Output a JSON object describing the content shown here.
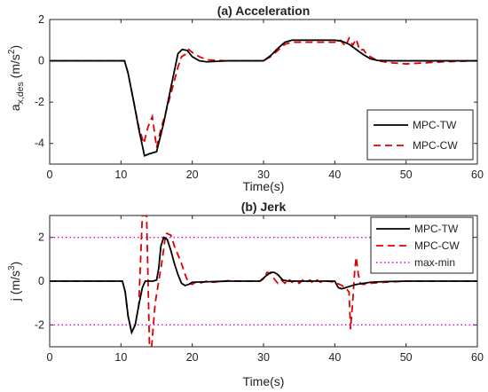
{
  "colors": {
    "tw": "#000000",
    "cw": "#e00000",
    "maxmin": "#e000e0"
  },
  "chart_data": [
    {
      "type": "line",
      "title": "(a) Acceleration",
      "xlabel": "Time(s)",
      "ylabel": "a",
      "ylabel_sub": "x,des",
      "ylabel_unit_open": "(m/s",
      "ylabel_unit_sup": "2",
      "ylabel_unit_close": ")",
      "xlim": [
        0,
        60
      ],
      "ylim": [
        -5,
        2
      ],
      "xticks": [
        0,
        10,
        20,
        30,
        40,
        50,
        60
      ],
      "xtick_labels": [
        "0",
        "10",
        "20",
        "30",
        "40",
        "50",
        "60"
      ],
      "yticks": [
        -4,
        -2,
        0,
        2
      ],
      "ytick_labels": [
        "-4",
        "-2",
        "0",
        "2"
      ],
      "legend_position": "bottom-right",
      "series": [
        {
          "name": "MPC-TW",
          "style": "solid",
          "color": "#000000",
          "x": [
            0,
            10.5,
            11,
            11.8,
            12.5,
            13.3,
            14,
            15,
            16,
            17,
            18,
            18.6,
            19.3,
            20,
            21,
            22,
            25,
            30,
            31,
            32,
            33,
            34,
            36,
            38,
            40,
            41,
            42,
            43,
            44,
            45,
            46,
            48,
            50,
            60
          ],
          "y": [
            0,
            0,
            -0.6,
            -2.0,
            -3.3,
            -4.6,
            -4.5,
            -4.4,
            -3.0,
            -1.3,
            0.35,
            0.55,
            0.5,
            0.2,
            0,
            -0.05,
            0,
            0,
            0.25,
            0.6,
            0.9,
            1.0,
            1.0,
            1.0,
            1.0,
            0.95,
            0.8,
            0.55,
            0.3,
            0.1,
            0.02,
            0,
            0,
            0
          ]
        },
        {
          "name": "MPC-CW",
          "style": "dashed",
          "color": "#e00000",
          "x": [
            0,
            10.5,
            11,
            11.8,
            12.5,
            13.2,
            13.8,
            14.4,
            15.0,
            15.6,
            16.2,
            17,
            18,
            18.5,
            19,
            19.5,
            20.2,
            21,
            22,
            25,
            30,
            31,
            32,
            33,
            34,
            36,
            38,
            40,
            40.8,
            41.5,
            42,
            42.5,
            43,
            43.5,
            44,
            44.5,
            45,
            46,
            48,
            50,
            55,
            60
          ],
          "y": [
            0,
            0,
            -0.6,
            -2.0,
            -3.2,
            -4.0,
            -3.2,
            -2.7,
            -4.2,
            -3.3,
            -2.6,
            -1.6,
            -0.3,
            0.2,
            0.3,
            0.55,
            0.35,
            0.2,
            0.05,
            0,
            0,
            0.2,
            0.5,
            0.8,
            0.9,
            0.9,
            0.9,
            0.9,
            1.0,
            0.7,
            1.1,
            0.75,
            1.05,
            0.5,
            0.55,
            0.3,
            0.2,
            0,
            -0.1,
            -0.15,
            -0.05,
            0
          ]
        }
      ]
    },
    {
      "type": "line",
      "title": "(b) Jerk",
      "xlabel": "Time(s)",
      "ylabel": "j (m/s",
      "ylabel_unit_sup": "3",
      "ylabel_unit_close": ")",
      "xlim": [
        0,
        60
      ],
      "ylim": [
        -3,
        3
      ],
      "xticks": [
        0,
        10,
        20,
        30,
        40,
        50,
        60
      ],
      "xtick_labels": [
        "0",
        "10",
        "20",
        "30",
        "40",
        "50",
        "60"
      ],
      "yticks": [
        -2,
        0,
        2
      ],
      "ytick_labels": [
        "-2",
        "0",
        "2"
      ],
      "legend_position": "top-right",
      "series": [
        {
          "name": "MPC-TW",
          "style": "solid",
          "color": "#000000",
          "x": [
            0,
            10.2,
            10.6,
            11,
            11.5,
            12,
            12.5,
            13,
            13.4,
            13.8,
            14.5,
            15,
            15.3,
            15.6,
            16,
            16.5,
            17,
            17.5,
            18,
            18.5,
            19,
            19.5,
            20,
            22,
            25,
            29.5,
            30.2,
            31,
            31.5,
            32,
            32.7,
            33.5,
            35,
            40,
            40.5,
            41,
            42,
            43,
            44,
            45,
            47,
            50,
            60
          ],
          "y": [
            0,
            0,
            -0.5,
            -1.6,
            -2.35,
            -2.0,
            -1.1,
            -0.3,
            0,
            0,
            0,
            0.05,
            0.6,
            1.6,
            2.0,
            1.9,
            1.4,
            0.8,
            0.3,
            -0.1,
            -0.2,
            -0.15,
            -0.05,
            -0.03,
            0,
            0,
            0.2,
            0.4,
            0.4,
            0.3,
            0.05,
            0,
            0,
            0,
            -0.3,
            -0.35,
            -0.25,
            -0.15,
            -0.1,
            -0.05,
            -0.02,
            0,
            0
          ]
        },
        {
          "name": "MPC-CW",
          "style": "dashed",
          "color": "#e00000",
          "x": [
            0,
            10.2,
            10.6,
            11,
            11.5,
            12,
            12.5,
            13,
            13.3,
            13.6,
            14.0,
            14.3,
            14.8,
            15.3,
            15.8,
            16.3,
            17,
            17.5,
            18,
            18.5,
            19,
            19.5,
            20,
            20.5,
            21,
            22,
            23,
            25,
            27,
            29.5,
            30,
            30.5,
            31,
            31.5,
            32,
            32.5,
            33,
            33.5,
            34,
            34.5,
            35,
            35.5,
            36,
            36.5,
            37,
            37.5,
            38,
            38.5,
            39,
            40,
            41,
            41.5,
            42,
            42.2,
            42.5,
            42.8,
            43,
            43.3,
            43.6,
            44,
            45,
            47,
            50,
            60
          ],
          "y": [
            0,
            0,
            -0.5,
            -1.6,
            -2.35,
            -2.0,
            -1.1,
            3.0,
            3.0,
            3.0,
            -3.0,
            -3.0,
            -1.0,
            0,
            1.0,
            2.2,
            2.1,
            1.6,
            1.2,
            0.8,
            0.3,
            -0.1,
            -0.15,
            -0.05,
            -0.1,
            0.0,
            -0.05,
            0.02,
            0,
            0,
            0.1,
            0.4,
            0.35,
            0.1,
            -0.1,
            0.05,
            -0.1,
            0.1,
            -0.05,
            0.05,
            -0.1,
            0.05,
            -0.05,
            0.05,
            -0.1,
            0.05,
            -0.05,
            0.02,
            0,
            -0.05,
            -0.2,
            -0.3,
            -0.5,
            -2.2,
            -1.0,
            0.5,
            1.1,
            0.3,
            -0.1,
            -0.15,
            -0.1,
            -0.05,
            0,
            0
          ]
        },
        {
          "name": "max-min",
          "style": "dotted",
          "color": "#e000e0",
          "x": [
            0,
            60
          ],
          "y": [
            2,
            2
          ],
          "x2": [
            0,
            60
          ],
          "y2": [
            -2,
            -2
          ]
        }
      ]
    }
  ]
}
